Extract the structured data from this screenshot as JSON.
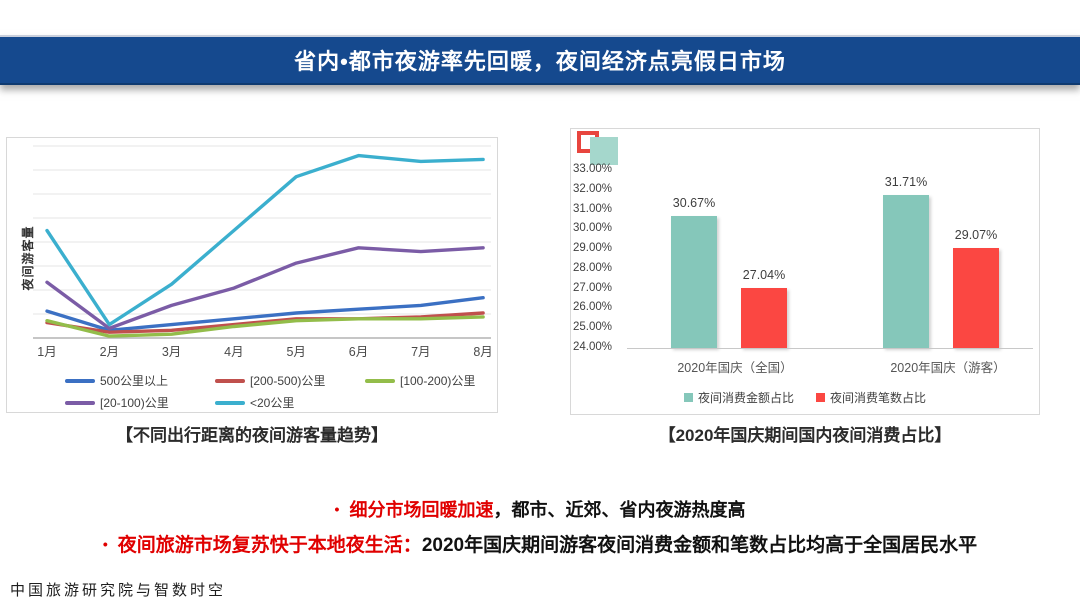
{
  "banner": {
    "title": "省内•都市夜游率先回暖，夜间经济点亮假日市场"
  },
  "left_chart": {
    "caption": "【不同出行距离的夜间游客量趋势】",
    "y_axis_label": "夜间游客量"
  },
  "right_chart": {
    "caption": "【2020年国庆期间国内夜间消费占比】"
  },
  "chart_data": [
    {
      "type": "line",
      "title": "不同出行距离的夜间游客量趋势",
      "x": [
        "1月",
        "2月",
        "3月",
        "4月",
        "5月",
        "6月",
        "7月",
        "8月"
      ],
      "ylabel": "夜间游客量",
      "y_axis_ticks": "none (relative visitor-volume index, 0-100 estimated from plot)",
      "ylim": [
        0,
        100
      ],
      "grid": "horizontal",
      "legend_position": "bottom-left, two rows",
      "series": [
        {
          "name": "500公里以上",
          "color": "#3B70C3",
          "values": [
            14,
            4,
            7,
            10,
            13,
            15,
            17,
            21
          ]
        },
        {
          "name": "[200-500)公里",
          "color": "#C0504D",
          "values": [
            8,
            3,
            4,
            7,
            10,
            10,
            11,
            13
          ]
        },
        {
          "name": "[100-200)公里",
          "color": "#93BD4A",
          "values": [
            9,
            1,
            2,
            6,
            9,
            10,
            10,
            11
          ]
        },
        {
          "name": "[20-100)公里",
          "color": "#7B5CA6",
          "values": [
            29,
            5,
            17,
            26,
            39,
            47,
            45,
            47
          ]
        },
        {
          "name": "<20公里",
          "color": "#3BAFCE",
          "values": [
            56,
            7,
            28,
            56,
            84,
            95,
            92,
            93
          ]
        }
      ]
    },
    {
      "type": "bar",
      "title": "2020年国庆期间国内夜间消费占比",
      "categories": [
        "2020年国庆（全国）",
        "2020年国庆（游客）"
      ],
      "series": [
        {
          "name": "夜间消费金额占比",
          "color": "#85C7BA",
          "values": [
            30.67,
            31.71
          ],
          "labels": [
            "30.67%",
            "31.71%"
          ]
        },
        {
          "name": "夜间消费笔数占比",
          "color": "#FB4742",
          "values": [
            27.04,
            29.07
          ],
          "labels": [
            "27.04%",
            "29.07%"
          ]
        }
      ],
      "ylim": [
        24,
        33
      ],
      "ytick_labels": [
        "33.00%",
        "32.00%",
        "31.00%",
        "30.00%",
        "29.00%",
        "28.00%",
        "27.00%",
        "26.00%",
        "25.00%",
        "24.00%"
      ],
      "grid": "off",
      "legend_position": "bottom-center"
    }
  ],
  "bullets": [
    {
      "dot": "•",
      "lead": "细分市场回暖加速",
      "rest": "，都市、近郊、省内夜游热度高"
    },
    {
      "dot": "•",
      "lead": "夜间旅游市场复苏快于本地夜生活：",
      "rest": "2020年国庆期间游客夜间消费金额和笔数占比均高于全国居民水平"
    }
  ],
  "footer": {
    "credit": "中国旅游研究院与智数时空"
  },
  "colors": {
    "banner_bg": "#15498E",
    "banner_text": "#FFFFFF",
    "bar_teal": "#85C7BA",
    "bar_red": "#FB4742",
    "deco_teal": "#A5D7CC",
    "deco_red": "#E8453E",
    "bullet_red": "#E00000",
    "gridline": "#E5E5E5",
    "axis_line": "#B3B3B3"
  }
}
